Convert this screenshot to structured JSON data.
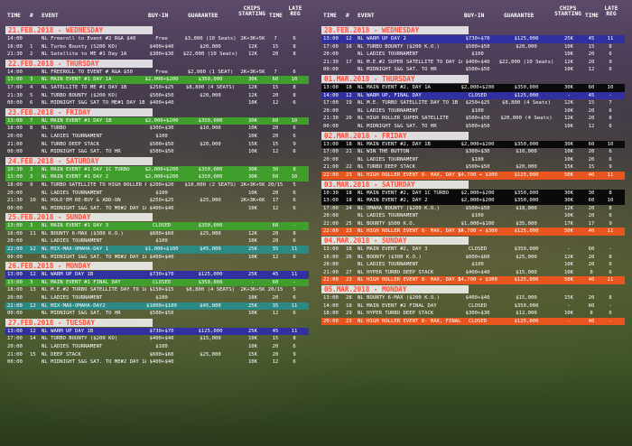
{
  "headers": {
    "time": "TIME",
    "num": "#",
    "event": "EVENT",
    "buyin": "BUY-IN",
    "guarantee": "GUARANTEE",
    "chips": "CHIPS STARTING",
    "time_col": "TIME",
    "late": "LATE REG"
  },
  "left_days": [
    {
      "title": "21.FEB.2018 - WEDNESDAY",
      "rows": [
        {
          "time": "14:00",
          "num": "",
          "event": "NL Freeroll to Event #2 R&A $40",
          "buyin": "Free",
          "guarantee": "$3,000 (10 Seats)",
          "chips": "2K+3K+5K",
          "tc": "7",
          "late": "6",
          "hl": ""
        },
        {
          "time": "16:00",
          "num": "1",
          "event": "NL Turbo Bounty (S200 KO)",
          "buyin": "$400+$40",
          "guarantee": "$20,000",
          "chips": "12K",
          "tc": "15",
          "late": "8",
          "hl": ""
        },
        {
          "time": "21:30",
          "num": "2",
          "event": "NL Satellite to ME #1 Day 1A",
          "buyin": "$300+$30",
          "guarantee": "$22,000 (10 Seats)",
          "chips": "12K",
          "tc": "20",
          "late": "8",
          "hl": ""
        }
      ]
    },
    {
      "title": "22.FEB.2018 - THURSDAY",
      "rows": [
        {
          "time": "14:00",
          "num": "",
          "event": "NL FREEROLL TO EVENT # R&A $50",
          "buyin": "Free",
          "guarantee": "$2,000 (1 SEAT)",
          "chips": "2K+3K+5K",
          "tc": "7",
          "late": "6",
          "hl": ""
        },
        {
          "time": "13:00",
          "num": "3",
          "event": "NL MAIN EVENT #1 DAY 1A",
          "buyin": "$2,000+$200",
          "guarantee": "$350,000",
          "chips": "30K",
          "tc": "60",
          "late": "10",
          "hl": "green"
        },
        {
          "time": "17:00",
          "num": "4",
          "event": "NL SATELLITE TO ME #1 DAY 1B",
          "buyin": "$250+$25",
          "guarantee": "$8,800 (4 SEATS)",
          "chips": "12K",
          "tc": "15",
          "late": "8",
          "hl": ""
        },
        {
          "time": "21:30",
          "num": "5",
          "event": "NL TURBO BOUNTY ($200 KO)",
          "buyin": "$500+$50",
          "guarantee": "$20,000",
          "chips": "12K",
          "tc": "20",
          "late": "8",
          "hl": ""
        },
        {
          "time": "00:00",
          "num": "6",
          "event": "NL MIDNIGHT S&G SAT TO ME#1 DAY 1B",
          "buyin": "$400+$40",
          "guarantee": "",
          "chips": "10K",
          "tc": "12",
          "late": "6",
          "hl": ""
        }
      ]
    },
    {
      "title": "23.FEB.2018 - FRIDAY",
      "rows": [
        {
          "time": "13:00",
          "num": "7",
          "event": "NL MAIN EVENT #1 DAY 1B",
          "buyin": "$2,000+$200",
          "guarantee": "$350,000",
          "chips": "30K",
          "tc": "60",
          "late": "10",
          "hl": "green"
        },
        {
          "time": "18:00",
          "num": "8",
          "event": "NL TURBO",
          "buyin": "$300+$30",
          "guarantee": "$10,000",
          "chips": "10K",
          "tc": "20",
          "late": "6",
          "hl": ""
        },
        {
          "time": "20:00",
          "num": "",
          "event": "NL LADIES TOURNAMENT",
          "buyin": "$100",
          "guarantee": "",
          "chips": "10K",
          "tc": "20",
          "late": "6",
          "hl": ""
        },
        {
          "time": "21:00",
          "num": "",
          "event": "NL TURBO DEEP STACK",
          "buyin": "$500+$50",
          "guarantee": "$20,000",
          "chips": "15K",
          "tc": "15",
          "late": "9",
          "hl": ""
        },
        {
          "time": "00:00",
          "num": "",
          "event": "NL MIDNIGHT S&G SAT. TO HR",
          "buyin": "$500+$50",
          "guarantee": "",
          "chips": "10K",
          "tc": "12",
          "late": "6",
          "hl": ""
        }
      ]
    },
    {
      "title": "24.FEB.2018 - SATURDAY",
      "rows": [
        {
          "time": "10:30",
          "num": "3",
          "event": "NL MAIN EVENT #1 DAY 1C TURBO",
          "buyin": "$2,000+$200",
          "guarantee": "$350,000",
          "chips": "30K",
          "tc": "30",
          "late": "8",
          "hl": "green"
        },
        {
          "time": "13:00",
          "num": "3",
          "event": "NL MAIN EVENT #1 DAY 2",
          "buyin": "$2,000+$200",
          "guarantee": "$350,000",
          "chips": "30K",
          "tc": "60",
          "late": "10",
          "hl": "green"
        },
        {
          "time": "18:00",
          "num": "9",
          "event": "NL TURBO SATELLITE TO HIGH ROLLER R&A",
          "buyin": "$200+$20",
          "guarantee": "$10,000 (2 SEATS)",
          "chips": "2K+3K+5K",
          "tc": "20/15",
          "late": "5",
          "hl": ""
        },
        {
          "time": "20:00",
          "num": "",
          "event": "NL LADIES TOURNAMENT",
          "buyin": "$100",
          "guarantee": "",
          "chips": "10K",
          "tc": "20",
          "late": "6",
          "hl": ""
        },
        {
          "time": "21:30",
          "num": "10",
          "event": "NL HOLD'EM RE-BUY & ADD-ON",
          "buyin": "$250+$25",
          "guarantee": "$25,000",
          "chips": "2K+3K+6K",
          "tc": "17",
          "late": "6",
          "hl": ""
        },
        {
          "time": "00:00",
          "num": "",
          "event": "NL MIDNIGHT S&G SAT. TO ME#2 DAY 1A",
          "buyin": "$400+$40",
          "guarantee": "",
          "chips": "10K",
          "tc": "12",
          "late": "6",
          "hl": ""
        }
      ]
    },
    {
      "title": "25.FEB.2018 - SUNDAY",
      "rows": [
        {
          "time": "13:00",
          "num": "3",
          "event": "NL MAIN EVENT #1 DAY 3",
          "buyin": "CLOSED",
          "guarantee": "$350,000",
          "chips": "",
          "tc": "60",
          "late": "-",
          "hl": "green"
        },
        {
          "time": "16:00",
          "num": "11",
          "event": "NL BOUNTY 6-MAX ($300 K.O.)",
          "buyin": "$600+$60",
          "guarantee": "$25,000",
          "chips": "12K",
          "tc": "20",
          "late": "8",
          "hl": ""
        },
        {
          "time": "20:00",
          "num": "",
          "event": "NL LADIES TOURNAMENT",
          "buyin": "$100",
          "guarantee": "",
          "chips": "10K",
          "tc": "20",
          "late": "6",
          "hl": ""
        },
        {
          "time": "22:00",
          "num": "12",
          "event": "NL MIX-MAX-OMAHA-DAY 1",
          "buyin": "$1,000+$100",
          "guarantee": "$45,000",
          "chips": "25K",
          "tc": "35",
          "late": "11",
          "hl": "teal"
        },
        {
          "time": "00:00",
          "num": "",
          "event": "NL MIDNIGHT S&G SAT. TO ME#2 DAY 1A",
          "buyin": "$400+$40",
          "guarantee": "",
          "chips": "10K",
          "tc": "12",
          "late": "6",
          "hl": ""
        }
      ]
    },
    {
      "title": "26.FEB.2018 - MONDAY",
      "rows": [
        {
          "time": "13:00",
          "num": "12",
          "event": "NL WARM UP DAY 1B",
          "buyin": "$730+$70",
          "guarantee": "$125,000",
          "chips": "25K",
          "tc": "45",
          "late": "11",
          "hl": "blue"
        },
        {
          "time": "13:00",
          "num": "3",
          "event": "NL MAIN EVENT #1 FINAL DAY",
          "buyin": "CLOSED",
          "guarantee": "$350,000",
          "chips": "-",
          "tc": "60",
          "late": "-",
          "hl": "green"
        },
        {
          "time": "18:00",
          "num": "13",
          "event": "NL M.E.#2 TURBO SATELLITE DAY TO 1A, R&A",
          "buyin": "$150+$15",
          "guarantee": "$8,800 (4 SEATS)",
          "chips": "2K+3K+5K",
          "tc": "20/15",
          "late": "5",
          "hl": ""
        },
        {
          "time": "20:00",
          "num": "",
          "event": "NL LADIES TOURNAMENT",
          "buyin": "$100",
          "guarantee": "",
          "chips": "10K",
          "tc": "20",
          "late": "6",
          "hl": ""
        },
        {
          "time": "22:00",
          "num": "12",
          "event": "NL MIX-MAX-OMAHA-DAY2",
          "buyin": "$1000+$100",
          "guarantee": "$45,000",
          "chips": "25K",
          "tc": "35",
          "late": "11",
          "hl": "teal"
        },
        {
          "time": "00:00",
          "num": "",
          "event": "NL MIDNIGHT S&G SAT. TO HR",
          "buyin": "$500+$50",
          "guarantee": "",
          "chips": "10K",
          "tc": "12",
          "late": "6",
          "hl": ""
        }
      ]
    },
    {
      "title": "27.FEB.2018 - TUESDAY",
      "rows": [
        {
          "time": "13:00",
          "num": "12",
          "event": "NL WARM UP DAY 1B",
          "buyin": "$730+$70",
          "guarantee": "$125,000",
          "chips": "25K",
          "tc": "45",
          "late": "11",
          "hl": "blue"
        },
        {
          "time": "17:00",
          "num": "14",
          "event": "NL TURBO BOUNTY ($200 KO)",
          "buyin": "$400+$40",
          "guarantee": "$15,000",
          "chips": "10K",
          "tc": "15",
          "late": "8",
          "hl": ""
        },
        {
          "time": "20:00",
          "num": "",
          "event": "NL LADIES TOURNAMENT",
          "buyin": "$100",
          "guarantee": "",
          "chips": "10K",
          "tc": "20",
          "late": "6",
          "hl": ""
        },
        {
          "time": "21:00",
          "num": "15",
          "event": "NL DEEP STACK",
          "buyin": "$600+$60",
          "guarantee": "$25,000",
          "chips": "15K",
          "tc": "20",
          "late": "9",
          "hl": ""
        },
        {
          "time": "00:00",
          "num": "",
          "event": "NL MIDNIGHT S&G SAT. TO ME#2 DAY 1A",
          "buyin": "$400+$40",
          "guarantee": "",
          "chips": "10K",
          "tc": "12",
          "late": "6",
          "hl": ""
        }
      ]
    }
  ],
  "right_days": [
    {
      "title": "28.FEB.2018 - WEDNESDAY",
      "rows": [
        {
          "time": "13:00",
          "num": "12",
          "event": "NL WARM UP DAY 2",
          "buyin": "$730+$70",
          "guarantee": "$125,000",
          "chips": "25K",
          "tc": "45",
          "late": "11",
          "hl": "blue"
        },
        {
          "time": "17:00",
          "num": "16",
          "event": "NL TURBO BOUNTY ($200 K.O.)",
          "buyin": "$500+$50",
          "guarantee": "$20,000",
          "chips": "10K",
          "tc": "15",
          "late": "8",
          "hl": ""
        },
        {
          "time": "20:00",
          "num": "",
          "event": "NL LADIES TOURNAMENT",
          "buyin": "$100",
          "guarantee": "",
          "chips": "10K",
          "tc": "20",
          "late": "6",
          "hl": ""
        },
        {
          "time": "21:30",
          "num": "17",
          "event": "NL M.E.#2 SUPER SATELLITE TO DAY 1A",
          "buyin": "$400+$40",
          "guarantee": "$22,000 (10 Seats)",
          "chips": "12K",
          "tc": "20",
          "late": "9",
          "hl": ""
        },
        {
          "time": "00:00",
          "num": "",
          "event": "NL MIDNIGHT S&G SAT. TO HR",
          "buyin": "$500+$50",
          "guarantee": "",
          "chips": "10K",
          "tc": "12",
          "late": "6",
          "hl": ""
        }
      ]
    },
    {
      "title": "01.MAR.2018 - THURSDAY",
      "rows": [
        {
          "time": "13:00",
          "num": "18",
          "event": "NL MAIN EVENT #2, DAY 1A",
          "buyin": "$2,000+$200",
          "guarantee": "$350,000",
          "chips": "30K",
          "tc": "60",
          "late": "10",
          "hl": "black"
        },
        {
          "time": "14:00",
          "num": "12",
          "event": "NL WARM UP, FINAL DAY",
          "buyin": "CLOSED",
          "guarantee": "$125,000",
          "chips": "-",
          "tc": "45",
          "late": "-",
          "hl": "blue"
        },
        {
          "time": "17:00",
          "num": "19",
          "event": "NL M.E. TURBO SATELLITE DAY TO 1B",
          "buyin": "$250+$25",
          "guarantee": "$8,800 (4 Seats)",
          "chips": "12K",
          "tc": "15",
          "late": "7",
          "hl": ""
        },
        {
          "time": "20:00",
          "num": "",
          "event": "NL LADIES TOURNAMENT",
          "buyin": "$100",
          "guarantee": "",
          "chips": "10K",
          "tc": "20",
          "late": "6",
          "hl": ""
        },
        {
          "time": "21:30",
          "num": "20",
          "event": "NL HIGH ROLLER SUPER SATELLITE",
          "buyin": "$500+$50",
          "guarantee": "$20,000 (4 Seats)",
          "chips": "12K",
          "tc": "20",
          "late": "8",
          "hl": ""
        },
        {
          "time": "00:00",
          "num": "",
          "event": "NL MIDNIGHT S&G SAT. TO HR",
          "buyin": "$500+$50",
          "guarantee": "",
          "chips": "10K",
          "tc": "12",
          "late": "6",
          "hl": ""
        }
      ]
    },
    {
      "title": "02.MAR.2018 - FRIDAY",
      "rows": [
        {
          "time": "13:00",
          "num": "18",
          "event": "NL MAIN EVENT #2, DAY 1B",
          "buyin": "$2,000+$200",
          "guarantee": "$350,000",
          "chips": "30K",
          "tc": "60",
          "late": "10",
          "hl": "black"
        },
        {
          "time": "17:00",
          "num": "21",
          "event": "NL WIN THE BUTTON",
          "buyin": "$300+$30",
          "guarantee": "$10,000",
          "chips": "10K",
          "tc": "20",
          "late": "6",
          "hl": ""
        },
        {
          "time": "20:00",
          "num": "",
          "event": "NL LADIES TOURNAMENT",
          "buyin": "$100",
          "guarantee": "",
          "chips": "10K",
          "tc": "20",
          "late": "6",
          "hl": ""
        },
        {
          "time": "21:00",
          "num": "22",
          "event": "NL TURBO DEEP STACK",
          "buyin": "$500+$50",
          "guarantee": "$20,000",
          "chips": "15K",
          "tc": "15",
          "late": "9",
          "hl": ""
        },
        {
          "time": "22:00",
          "num": "23",
          "event": "NL HIGH ROLLER EVENT 8- MAX, DAY 1",
          "buyin": "$4,700 + $300",
          "guarantee": "$125,000",
          "chips": "50K",
          "tc": "40",
          "late": "11",
          "hl": "orange"
        }
      ]
    },
    {
      "title": "03.MAR.2018 - SATURDAY",
      "rows": [
        {
          "time": "10:30",
          "num": "18",
          "event": "NL MAIN EVENT #2, DAY 1C TURBO",
          "buyin": "$2,000+$200",
          "guarantee": "$350,000",
          "chips": "30K",
          "tc": "30",
          "late": "8",
          "hl": "black"
        },
        {
          "time": "13:00",
          "num": "18",
          "event": "NL MAIN EVENT #2, DAY 2",
          "buyin": "$2,000+$200",
          "guarantee": "$350,000",
          "chips": "30K",
          "tc": "60",
          "late": "10",
          "hl": "black"
        },
        {
          "time": "17:00",
          "num": "24",
          "event": "NL OMAHA BOUNTY ($200 K.O.)",
          "buyin": "$500+$50",
          "guarantee": "$18,000",
          "chips": "12K",
          "tc": "20",
          "late": "8",
          "hl": ""
        },
        {
          "time": "20:00",
          "num": "",
          "event": "NL LADIES TOURNAMENT",
          "buyin": "$100",
          "guarantee": "",
          "chips": "10K",
          "tc": "20",
          "late": "6",
          "hl": ""
        },
        {
          "time": "22:00",
          "num": "25",
          "event": "NL BOUNTY $500 K.O.",
          "buyin": "$1,000+$100",
          "guarantee": "$35,000",
          "chips": "17K",
          "tc": "17",
          "late": "9",
          "hl": ""
        },
        {
          "time": "22:00",
          "num": "23",
          "event": "NL HIGH ROLLER EVENT 8- MAX, DAY 1B",
          "buyin": "$4,700 + $300",
          "guarantee": "$125,000",
          "chips": "50K",
          "tc": "40",
          "late": "11",
          "hl": "orange"
        }
      ]
    },
    {
      "title": "04.MAR.2018 - SUNDAY",
      "rows": [
        {
          "time": "13:00",
          "num": "18",
          "event": "NL MAIN EVENT #2, DAY 3",
          "buyin": "CLOSED",
          "guarantee": "$350,000",
          "chips": "-",
          "tc": "60",
          "late": "-",
          "hl": ""
        },
        {
          "time": "16:00",
          "num": "26",
          "event": "NL BOUNTY ($300 K.O.)",
          "buyin": "$600+$60",
          "guarantee": "$25,000",
          "chips": "12K",
          "tc": "20",
          "late": "8",
          "hl": ""
        },
        {
          "time": "20:00",
          "num": "",
          "event": "NL LADIES TOURNAMENT",
          "buyin": "$100",
          "guarantee": "",
          "chips": "10K",
          "tc": "20",
          "late": "6",
          "hl": ""
        },
        {
          "time": "21:00",
          "num": "27",
          "event": "NL HYPER TURBO DEEP STACK",
          "buyin": "$400+$40",
          "guarantee": "$15,000",
          "chips": "10K",
          "tc": "8",
          "late": "6",
          "hl": ""
        },
        {
          "time": "22:00",
          "num": "23",
          "event": "NL HIGH ROLLER EVENT 8- MAX, DAY 3",
          "buyin": "$4,700 + $300",
          "guarantee": "$125,000",
          "chips": "50K",
          "tc": "40",
          "late": "11",
          "hl": "orange"
        }
      ]
    },
    {
      "title": "05.MAR.2018 - MONDAY",
      "rows": [
        {
          "time": "13:00",
          "num": "28",
          "event": "NL BOUNTY 6-MAX ($200 K.O.)",
          "buyin": "$400+$40",
          "guarantee": "$15,000",
          "chips": "15K",
          "tc": "20",
          "late": "8",
          "hl": ""
        },
        {
          "time": "14:00",
          "num": "18",
          "event": "NL MAIN EVENT #2 FINAL DAY",
          "buyin": "CLOSED",
          "guarantee": "$350,000",
          "chips": "-",
          "tc": "60",
          "late": "-",
          "hl": ""
        },
        {
          "time": "18:00",
          "num": "29",
          "event": "NL HYPER TURBO DEEP STACK",
          "buyin": "$300+$30",
          "guarantee": "$12,000",
          "chips": "10K",
          "tc": "8",
          "late": "6",
          "hl": ""
        },
        {
          "time": "20:00",
          "num": "23",
          "event": "NL HIGH ROLLER EVENT 8- MAX, FINAL DAY",
          "buyin": "CLOSED",
          "guarantee": "$125,000",
          "chips": "-",
          "tc": "40",
          "late": "-",
          "hl": "orange"
        }
      ]
    }
  ]
}
